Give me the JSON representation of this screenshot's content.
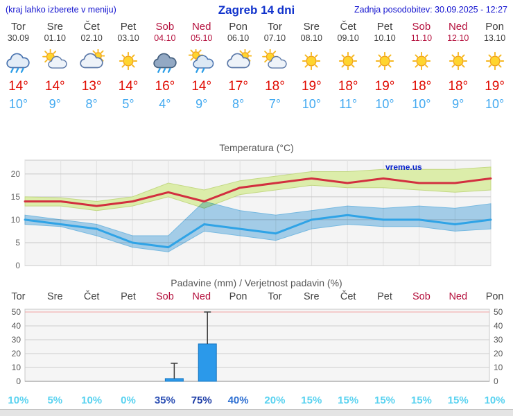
{
  "header": {
    "left_note": "(kraj lahko izberete v meniju)",
    "title": "Zagreb 14 dni",
    "updated": "Zadnja posodobitev: 30.09.2025 - 12:27"
  },
  "days": [
    {
      "name": "Tor",
      "date": "30.09",
      "weekend": false,
      "icon": "rain",
      "tmax": "14°",
      "tmin": "10°"
    },
    {
      "name": "Sre",
      "date": "01.10",
      "weekend": false,
      "icon": "partly-cloudy",
      "tmax": "14°",
      "tmin": "9°"
    },
    {
      "name": "Čet",
      "date": "02.10",
      "weekend": false,
      "icon": "mostly-cloudy",
      "tmax": "13°",
      "tmin": "8°"
    },
    {
      "name": "Pet",
      "date": "03.10",
      "weekend": false,
      "icon": "sunny",
      "tmax": "14°",
      "tmin": "5°"
    },
    {
      "name": "Sob",
      "date": "04.10",
      "weekend": true,
      "icon": "heavy-rain",
      "tmax": "16°",
      "tmin": "4°"
    },
    {
      "name": "Ned",
      "date": "05.10",
      "weekend": true,
      "icon": "showers",
      "tmax": "14°",
      "tmin": "9°"
    },
    {
      "name": "Pon",
      "date": "06.10",
      "weekend": false,
      "icon": "mostly-cloudy",
      "tmax": "17°",
      "tmin": "8°"
    },
    {
      "name": "Tor",
      "date": "07.10",
      "weekend": false,
      "icon": "partly-cloudy",
      "tmax": "18°",
      "tmin": "7°"
    },
    {
      "name": "Sre",
      "date": "08.10",
      "weekend": false,
      "icon": "sunny",
      "tmax": "19°",
      "tmin": "10°"
    },
    {
      "name": "Čet",
      "date": "09.10",
      "weekend": false,
      "icon": "sunny",
      "tmax": "18°",
      "tmin": "11°"
    },
    {
      "name": "Pet",
      "date": "10.10",
      "weekend": false,
      "icon": "sunny",
      "tmax": "19°",
      "tmin": "10°"
    },
    {
      "name": "Sob",
      "date": "11.10",
      "weekend": true,
      "icon": "sunny",
      "tmax": "18°",
      "tmin": "10°"
    },
    {
      "name": "Ned",
      "date": "12.10",
      "weekend": true,
      "icon": "sunny",
      "tmax": "18°",
      "tmin": "9°"
    },
    {
      "name": "Pon",
      "date": "13.10",
      "weekend": false,
      "icon": "sunny",
      "tmax": "19°",
      "tmin": "10°"
    }
  ],
  "chart_data": [
    {
      "type": "line",
      "title": "Temperatura (°C)",
      "x_labels": [
        "Tor",
        "Sre",
        "Čet",
        "Pet",
        "Sob",
        "Ned",
        "Pon",
        "Tor",
        "Sre",
        "Čet",
        "Pet",
        "Sob",
        "Ned",
        "Pon"
      ],
      "ylim": [
        0,
        23
      ],
      "yticks": [
        0,
        5,
        10,
        15,
        20
      ],
      "grid": true,
      "watermark": "vreme.us",
      "watermark_color": "#0a23cc",
      "series": [
        {
          "name": "max-temperature",
          "color": "#d22f3f",
          "band_color": "#dcedaa",
          "band_edge": "#c3d884",
          "blend": false,
          "values": [
            14,
            14,
            13,
            14,
            16,
            14,
            17,
            18,
            19,
            18,
            19,
            18,
            18,
            19
          ],
          "band_upper": [
            15,
            14.8,
            14,
            15,
            18,
            16.5,
            18.5,
            19.5,
            20.5,
            20.5,
            21,
            21,
            21,
            21.5
          ],
          "band_lower": [
            13,
            13,
            12,
            13,
            15,
            12.5,
            15.5,
            16.5,
            17.5,
            17,
            17,
            16.5,
            16,
            16.5
          ]
        },
        {
          "name": "min-temperature",
          "color": "#2fa3e6",
          "band_color": "#aad6f2",
          "band_edge": "#7cc2ec",
          "blend": true,
          "values": [
            10,
            9,
            8,
            5,
            4,
            9,
            8,
            7,
            10,
            11,
            10,
            10,
            9,
            10
          ],
          "band_upper": [
            11,
            10,
            9,
            6.5,
            6.5,
            14,
            12,
            11,
            12,
            13,
            12.5,
            13,
            12.5,
            13.5
          ],
          "band_lower": [
            9,
            8.5,
            6.5,
            4,
            3,
            7.5,
            6.5,
            5.5,
            8,
            9,
            8.5,
            8.5,
            7.5,
            8
          ]
        }
      ]
    },
    {
      "type": "bar",
      "title": "Padavine (mm) / Verjetnost padavin (%)",
      "categories": [
        "Tor",
        "Sre",
        "Čet",
        "Pet",
        "Sob",
        "Ned",
        "Pon",
        "Tor",
        "Sre",
        "Čet",
        "Pet",
        "Sob",
        "Ned",
        "Pon"
      ],
      "values": [
        0,
        0,
        0,
        0,
        2,
        27,
        0,
        0,
        0,
        0,
        0,
        0,
        0,
        0
      ],
      "whiskers": [
        0,
        0,
        0,
        0,
        13,
        50,
        0,
        0,
        0,
        0,
        0,
        0,
        0,
        0
      ],
      "ylim": [
        0,
        52
      ],
      "yticks": [
        0,
        10,
        20,
        30,
        40,
        50
      ],
      "top_gridline_color": "#f2a2a2",
      "bar_color": "#2b99ea",
      "bar_edge": "#1474bf",
      "probabilities": [
        {
          "label": "10%",
          "color": "#59d2f0"
        },
        {
          "label": "5%",
          "color": "#59d2f0"
        },
        {
          "label": "10%",
          "color": "#59d2f0"
        },
        {
          "label": "0%",
          "color": "#59d2f0"
        },
        {
          "label": "35%",
          "color": "#2d50b4"
        },
        {
          "label": "75%",
          "color": "#1d3da6"
        },
        {
          "label": "40%",
          "color": "#2d6fd2"
        },
        {
          "label": "20%",
          "color": "#59d2f0"
        },
        {
          "label": "15%",
          "color": "#59d2f0"
        },
        {
          "label": "15%",
          "color": "#59d2f0"
        },
        {
          "label": "15%",
          "color": "#59d2f0"
        },
        {
          "label": "15%",
          "color": "#59d2f0"
        },
        {
          "label": "15%",
          "color": "#59d2f0"
        },
        {
          "label": "10%",
          "color": "#59d2f0"
        }
      ]
    }
  ]
}
